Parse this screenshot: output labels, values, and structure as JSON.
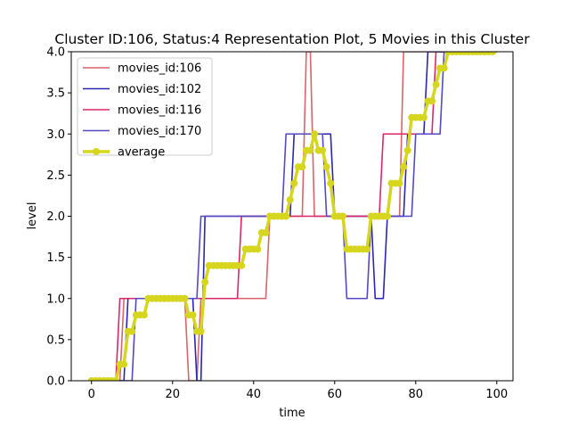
{
  "chart_data": {
    "type": "line",
    "title": "Cluster ID:106, Status:4 Representation Plot, 5 Movies in this Cluster",
    "xlabel": "time",
    "ylabel": "level",
    "xlim": [
      -5,
      104
    ],
    "ylim": [
      0.0,
      4.0
    ],
    "xticks": [
      0,
      20,
      40,
      60,
      80,
      100
    ],
    "yticks": [
      0.0,
      0.5,
      1.0,
      1.5,
      2.0,
      2.5,
      3.0,
      3.5,
      4.0
    ],
    "xtick_labels": [
      "0",
      "20",
      "40",
      "60",
      "80",
      "100"
    ],
    "ytick_labels": [
      "0.0",
      "0.5",
      "1.0",
      "1.5",
      "2.0",
      "2.5",
      "3.0",
      "3.5",
      "4.0"
    ],
    "grid": false,
    "legend_position": "top-left",
    "series": [
      {
        "name": "movies_id:106",
        "color": "#d9646a",
        "marker": false,
        "points": [
          [
            0,
            0
          ],
          [
            7,
            0
          ],
          [
            8,
            1
          ],
          [
            23,
            1
          ],
          [
            24,
            0
          ],
          [
            26,
            0
          ],
          [
            27,
            1
          ],
          [
            43,
            1
          ],
          [
            44,
            2
          ],
          [
            52,
            2
          ],
          [
            53,
            4
          ],
          [
            54,
            4
          ],
          [
            55,
            2
          ],
          [
            70,
            2
          ],
          [
            71,
            2
          ],
          [
            76,
            2
          ],
          [
            77,
            4
          ],
          [
            100,
            4
          ]
        ]
      },
      {
        "name": "movies_id:102",
        "color": "#2b26b0",
        "marker": false,
        "points": [
          [
            0,
            0
          ],
          [
            8,
            0
          ],
          [
            9,
            1
          ],
          [
            25,
            1
          ],
          [
            26,
            0
          ],
          [
            27,
            0
          ],
          [
            28,
            2
          ],
          [
            42,
            2
          ],
          [
            43,
            2
          ],
          [
            49,
            2
          ],
          [
            50,
            3
          ],
          [
            59,
            3
          ],
          [
            60,
            2
          ],
          [
            69,
            2
          ],
          [
            70,
            1
          ],
          [
            72,
            1
          ],
          [
            73,
            2
          ],
          [
            77,
            2
          ],
          [
            78,
            3
          ],
          [
            82,
            3
          ],
          [
            83,
            4
          ],
          [
            100,
            4
          ]
        ]
      },
      {
        "name": "movies_id:116",
        "color": "#d8286a",
        "marker": false,
        "points": [
          [
            0,
            0
          ],
          [
            6,
            0
          ],
          [
            7,
            1
          ],
          [
            14,
            1
          ],
          [
            15,
            1
          ],
          [
            36,
            1
          ],
          [
            37,
            2
          ],
          [
            71,
            2
          ],
          [
            72,
            3
          ],
          [
            84,
            3
          ],
          [
            85,
            4
          ],
          [
            100,
            4
          ]
        ]
      },
      {
        "name": "movies_id:170",
        "color": "#5548c4",
        "marker": false,
        "points": [
          [
            0,
            0
          ],
          [
            10,
            0
          ],
          [
            11,
            1
          ],
          [
            26,
            1
          ],
          [
            27,
            2
          ],
          [
            47,
            2
          ],
          [
            48,
            3
          ],
          [
            57,
            3
          ],
          [
            58,
            2
          ],
          [
            62,
            2
          ],
          [
            63,
            1
          ],
          [
            68,
            1
          ],
          [
            69,
            2
          ],
          [
            79,
            2
          ],
          [
            80,
            3
          ],
          [
            86,
            3
          ],
          [
            87,
            4
          ],
          [
            100,
            4
          ]
        ]
      },
      {
        "name": "average",
        "color": "#d6d61e",
        "marker": true,
        "points": [
          [
            0,
            0
          ],
          [
            1,
            0
          ],
          [
            2,
            0
          ],
          [
            3,
            0
          ],
          [
            4,
            0
          ],
          [
            5,
            0
          ],
          [
            6,
            0
          ],
          [
            7,
            0.2
          ],
          [
            8,
            0.2
          ],
          [
            9,
            0.6
          ],
          [
            10,
            0.6
          ],
          [
            11,
            0.8
          ],
          [
            12,
            0.8
          ],
          [
            13,
            0.8
          ],
          [
            14,
            1
          ],
          [
            15,
            1
          ],
          [
            16,
            1
          ],
          [
            17,
            1
          ],
          [
            18,
            1
          ],
          [
            19,
            1
          ],
          [
            20,
            1
          ],
          [
            21,
            1
          ],
          [
            22,
            1
          ],
          [
            23,
            1
          ],
          [
            24,
            0.8
          ],
          [
            25,
            0.8
          ],
          [
            26,
            0.6
          ],
          [
            27,
            0.6
          ],
          [
            28,
            1.2
          ],
          [
            29,
            1.4
          ],
          [
            30,
            1.4
          ],
          [
            31,
            1.4
          ],
          [
            32,
            1.4
          ],
          [
            33,
            1.4
          ],
          [
            34,
            1.4
          ],
          [
            35,
            1.4
          ],
          [
            36,
            1.4
          ],
          [
            37,
            1.4
          ],
          [
            38,
            1.6
          ],
          [
            39,
            1.6
          ],
          [
            40,
            1.6
          ],
          [
            41,
            1.6
          ],
          [
            42,
            1.8
          ],
          [
            43,
            1.8
          ],
          [
            44,
            2
          ],
          [
            45,
            2
          ],
          [
            46,
            2
          ],
          [
            47,
            2
          ],
          [
            48,
            2
          ],
          [
            49,
            2.2
          ],
          [
            50,
            2.4
          ],
          [
            51,
            2.6
          ],
          [
            52,
            2.6
          ],
          [
            53,
            2.8
          ],
          [
            54,
            2.8
          ],
          [
            55,
            3
          ],
          [
            56,
            2.8
          ],
          [
            57,
            2.8
          ],
          [
            58,
            2.6
          ],
          [
            59,
            2.4
          ],
          [
            60,
            2
          ],
          [
            61,
            2
          ],
          [
            62,
            2
          ],
          [
            63,
            1.6
          ],
          [
            64,
            1.6
          ],
          [
            65,
            1.6
          ],
          [
            66,
            1.6
          ],
          [
            67,
            1.6
          ],
          [
            68,
            1.6
          ],
          [
            69,
            2
          ],
          [
            70,
            2
          ],
          [
            71,
            2
          ],
          [
            72,
            2
          ],
          [
            73,
            2
          ],
          [
            74,
            2.4
          ],
          [
            75,
            2.4
          ],
          [
            76,
            2.4
          ],
          [
            77,
            2.6
          ],
          [
            78,
            2.8
          ],
          [
            79,
            3.2
          ],
          [
            80,
            3.2
          ],
          [
            81,
            3.2
          ],
          [
            82,
            3.2
          ],
          [
            83,
            3.4
          ],
          [
            84,
            3.4
          ],
          [
            85,
            3.6
          ],
          [
            86,
            3.8
          ],
          [
            87,
            3.8
          ],
          [
            88,
            4
          ],
          [
            89,
            4
          ],
          [
            90,
            4
          ],
          [
            91,
            4
          ],
          [
            92,
            4
          ],
          [
            93,
            4
          ],
          [
            94,
            4
          ],
          [
            95,
            4
          ],
          [
            96,
            4
          ],
          [
            97,
            4
          ],
          [
            98,
            4
          ],
          [
            99,
            4
          ]
        ]
      }
    ]
  }
}
